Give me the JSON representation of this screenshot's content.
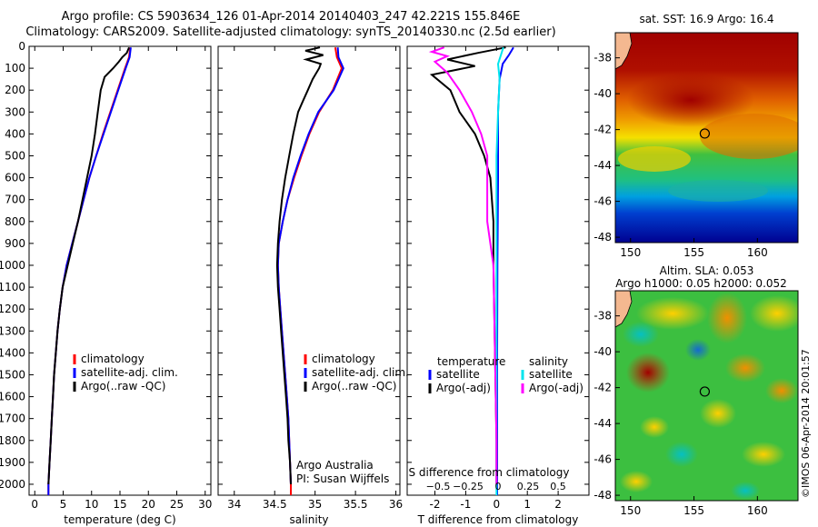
{
  "header": {
    "title_line1": "Argo profile: CS 5903634_126 01-Apr-2014 20140403_247 42.221S 155.846E",
    "title_line2": "Climatology: CARS2009. Satellite-adjusted climatology: synTS_20140330.nc (2.5d earlier)"
  },
  "credit": {
    "institution": "Argo Australia",
    "pi": "PI: Susan Wijffels",
    "watermark": "IMOS 06-Apr-2014 20:01:57"
  },
  "colors": {
    "climatology": "#ff0000",
    "satellite": "#0000ff",
    "argo": "#000000",
    "salinity_satellite": "#00e5ee",
    "salinity_argo": "#ff00ff"
  },
  "chart_data": [
    {
      "type": "line",
      "id": "temperature",
      "xlabel": "temperature (deg C)",
      "xlim": [
        -1,
        31
      ],
      "ylim": [
        2050,
        0
      ],
      "xticks": [
        0,
        5,
        10,
        15,
        20,
        25,
        30
      ],
      "yticks": [
        0,
        100,
        200,
        300,
        400,
        500,
        600,
        700,
        800,
        900,
        1000,
        1100,
        1200,
        1300,
        1400,
        1500,
        1600,
        1700,
        1800,
        1900,
        2000
      ],
      "legend": [
        "climatology",
        "satellite-adj. clim.",
        "Argo(..raw -QC)"
      ],
      "series": [
        {
          "name": "climatology",
          "color": "#ff0000",
          "points": [
            [
              16.8,
              5
            ],
            [
              16.6,
              50
            ],
            [
              15.9,
              100
            ],
            [
              14.6,
              200
            ],
            [
              13.3,
              300
            ],
            [
              12.0,
              400
            ],
            [
              10.8,
              500
            ],
            [
              9.6,
              600
            ],
            [
              8.6,
              700
            ],
            [
              7.6,
              800
            ],
            [
              6.6,
              900
            ],
            [
              5.6,
              1000
            ],
            [
              4.9,
              1100
            ],
            [
              4.4,
              1200
            ],
            [
              4.0,
              1300
            ],
            [
              3.7,
              1400
            ],
            [
              3.4,
              1500
            ],
            [
              3.2,
              1600
            ],
            [
              3.0,
              1700
            ],
            [
              2.8,
              1800
            ],
            [
              2.6,
              1900
            ],
            [
              2.4,
              2000
            ],
            [
              2.4,
              2050
            ]
          ]
        },
        {
          "name": "satellite-adj. clim.",
          "color": "#0000ff",
          "points": [
            [
              16.9,
              5
            ],
            [
              16.7,
              50
            ],
            [
              16.0,
              100
            ],
            [
              14.7,
              200
            ],
            [
              13.4,
              300
            ],
            [
              12.1,
              400
            ],
            [
              10.8,
              500
            ],
            [
              9.6,
              600
            ],
            [
              8.6,
              700
            ],
            [
              7.6,
              800
            ],
            [
              6.6,
              900
            ],
            [
              5.6,
              1000
            ],
            [
              4.9,
              1100
            ],
            [
              4.4,
              1200
            ],
            [
              4.0,
              1300
            ],
            [
              3.7,
              1400
            ],
            [
              3.4,
              1500
            ],
            [
              3.2,
              1600
            ],
            [
              3.0,
              1700
            ],
            [
              2.8,
              1800
            ],
            [
              2.6,
              1900
            ],
            [
              2.4,
              2000
            ],
            [
              2.4,
              2050
            ]
          ]
        },
        {
          "name": "Argo(..raw -QC)",
          "color": "#000000",
          "points": [
            [
              16.6,
              5
            ],
            [
              16.2,
              30
            ],
            [
              15.4,
              50
            ],
            [
              14.8,
              70
            ],
            [
              13.8,
              100
            ],
            [
              12.3,
              140
            ],
            [
              11.6,
              200
            ],
            [
              11.1,
              300
            ],
            [
              10.6,
              400
            ],
            [
              10.0,
              500
            ],
            [
              9.2,
              600
            ],
            [
              8.4,
              700
            ],
            [
              7.6,
              800
            ],
            [
              6.7,
              900
            ],
            [
              5.8,
              1000
            ],
            [
              4.9,
              1100
            ],
            [
              4.4,
              1200
            ],
            [
              4.0,
              1300
            ],
            [
              3.7,
              1400
            ],
            [
              3.4,
              1500
            ],
            [
              3.2,
              1600
            ],
            [
              3.0,
              1700
            ],
            [
              2.8,
              1800
            ],
            [
              2.6,
              1900
            ],
            [
              2.4,
              2000
            ]
          ]
        }
      ]
    },
    {
      "type": "line",
      "id": "salinity",
      "xlabel": "salinity",
      "xlim": [
        33.8,
        36.05
      ],
      "ylim": [
        2050,
        0
      ],
      "xticks": [
        34,
        34.5,
        35,
        35.5,
        36
      ],
      "legend": [
        "climatology",
        "satellite-adj. clim.",
        "Argo(..raw -QC)"
      ],
      "series": [
        {
          "name": "climatology",
          "color": "#ff0000",
          "points": [
            [
              35.25,
              5
            ],
            [
              35.27,
              50
            ],
            [
              35.33,
              100
            ],
            [
              35.22,
              200
            ],
            [
              35.05,
              300
            ],
            [
              34.93,
              400
            ],
            [
              34.83,
              500
            ],
            [
              34.74,
              600
            ],
            [
              34.66,
              700
            ],
            [
              34.6,
              800
            ],
            [
              34.55,
              900
            ],
            [
              34.54,
              1000
            ],
            [
              34.55,
              1100
            ],
            [
              34.57,
              1200
            ],
            [
              34.59,
              1300
            ],
            [
              34.61,
              1400
            ],
            [
              34.63,
              1500
            ],
            [
              34.65,
              1600
            ],
            [
              34.67,
              1700
            ],
            [
              34.68,
              1800
            ],
            [
              34.69,
              1900
            ],
            [
              34.7,
              2000
            ],
            [
              34.7,
              2050
            ]
          ]
        },
        {
          "name": "satellite-adj. clim.",
          "color": "#0000ff",
          "points": [
            [
              35.28,
              5
            ],
            [
              35.29,
              50
            ],
            [
              35.35,
              100
            ],
            [
              35.23,
              200
            ],
            [
              35.04,
              300
            ],
            [
              34.92,
              400
            ],
            [
              34.82,
              500
            ],
            [
              34.73,
              600
            ],
            [
              34.66,
              700
            ],
            [
              34.6,
              800
            ],
            [
              34.55,
              900
            ],
            [
              34.54,
              1000
            ],
            [
              34.55,
              1100
            ],
            [
              34.57,
              1200
            ],
            [
              34.59,
              1300
            ],
            [
              34.61,
              1400
            ],
            [
              34.63,
              1500
            ],
            [
              34.65,
              1600
            ],
            [
              34.67,
              1700
            ],
            [
              34.68,
              1800
            ],
            [
              34.69,
              1900
            ],
            [
              34.7,
              2000
            ]
          ]
        },
        {
          "name": "Argo(..raw -QC)",
          "color": "#000000",
          "points": [
            [
              35.06,
              5
            ],
            [
              34.88,
              20
            ],
            [
              35.1,
              40
            ],
            [
              34.89,
              60
            ],
            [
              35.07,
              80
            ],
            [
              35.05,
              100
            ],
            [
              34.97,
              150
            ],
            [
              34.91,
              200
            ],
            [
              34.85,
              250
            ],
            [
              34.79,
              300
            ],
            [
              34.73,
              400
            ],
            [
              34.68,
              500
            ],
            [
              34.63,
              600
            ],
            [
              34.59,
              700
            ],
            [
              34.56,
              800
            ],
            [
              34.54,
              900
            ],
            [
              34.53,
              1000
            ],
            [
              34.54,
              1100
            ],
            [
              34.56,
              1200
            ],
            [
              34.58,
              1300
            ],
            [
              34.6,
              1400
            ],
            [
              34.62,
              1500
            ],
            [
              34.64,
              1600
            ],
            [
              34.66,
              1700
            ],
            [
              34.67,
              1800
            ],
            [
              34.69,
              1900
            ],
            [
              34.7,
              2000
            ]
          ]
        }
      ]
    },
    {
      "type": "line",
      "id": "differences",
      "xlabel": "T difference from climatology",
      "top_label": "S difference from climatology",
      "xlim": [
        -2.9,
        3.0
      ],
      "ylim": [
        2050,
        0
      ],
      "xticks": [
        -2,
        -1,
        0,
        1,
        2
      ],
      "top_ticks": [
        -0.5,
        -0.25,
        0,
        0.25,
        0.5
      ],
      "legend_titles": [
        "temperature",
        "salinity"
      ],
      "legend": [
        "satellite",
        "Argo(-adj)",
        "satellite",
        "Argo(-adj)"
      ],
      "series": [
        {
          "name": "satellite",
          "color": "#0000ff",
          "points": [
            [
              0.55,
              5
            ],
            [
              0.4,
              40
            ],
            [
              0.2,
              80
            ],
            [
              0.1,
              150
            ],
            [
              0.05,
              300
            ],
            [
              0.05,
              600
            ],
            [
              0.03,
              1000
            ],
            [
              0.02,
              1400
            ],
            [
              0.02,
              2050
            ]
          ]
        },
        {
          "name": "Argo(-adj)",
          "color": "#000000",
          "points": [
            [
              0.3,
              5
            ],
            [
              -0.6,
              30
            ],
            [
              -1.6,
              60
            ],
            [
              -0.7,
              90
            ],
            [
              -2.1,
              130
            ],
            [
              -1.5,
              200
            ],
            [
              -1.2,
              300
            ],
            [
              -0.7,
              400
            ],
            [
              -0.4,
              500
            ],
            [
              -0.2,
              600
            ],
            [
              -0.1,
              800
            ],
            [
              -0.1,
              1000
            ],
            [
              -0.05,
              1400
            ],
            [
              0.0,
              1800
            ],
            [
              0.0,
              2000
            ]
          ]
        },
        {
          "name": "satellite",
          "color": "#00e5ee",
          "points": [
            [
              0.22,
              5
            ],
            [
              0.05,
              80
            ],
            [
              0.1,
              150
            ],
            [
              0.05,
              300
            ],
            [
              0.0,
              500
            ],
            [
              0.0,
              1000
            ],
            [
              0.0,
              2050
            ]
          ]
        },
        {
          "name": "Argo(-adj)",
          "color": "#ff00ff",
          "points": [
            [
              -1.7,
              5
            ],
            [
              -2.1,
              25
            ],
            [
              -1.6,
              45
            ],
            [
              -2.0,
              70
            ],
            [
              -1.6,
              120
            ],
            [
              -1.2,
              200
            ],
            [
              -0.8,
              300
            ],
            [
              -0.5,
              400
            ],
            [
              -0.3,
              500
            ],
            [
              -0.3,
              800
            ],
            [
              -0.1,
              1000
            ],
            [
              -0.05,
              1400
            ],
            [
              0.0,
              1800
            ],
            [
              0.0,
              2000
            ]
          ]
        }
      ]
    },
    {
      "type": "heatmap",
      "id": "sst-map",
      "title": "sat. SST: 16.9  Argo: 16.4",
      "xlim": [
        148.8,
        163.2
      ],
      "ylim": [
        -48.3,
        -36.6
      ],
      "xticks": [
        150,
        155,
        160
      ],
      "yticks": [
        -38,
        -40,
        -42,
        -44,
        -46,
        -48
      ],
      "marker": [
        155.85,
        -42.22
      ]
    },
    {
      "type": "heatmap",
      "id": "sla-map",
      "title_line1": "Altim. SLA: 0.053",
      "title_line2": "Argo h1000: 0.05 h2000: 0.052",
      "xlim": [
        148.8,
        163.2
      ],
      "ylim": [
        -48.3,
        -36.6
      ],
      "xticks": [
        150,
        155,
        160
      ],
      "yticks": [
        -38,
        -40,
        -42,
        -44,
        -46,
        -48
      ],
      "marker": [
        155.85,
        -42.22
      ]
    }
  ]
}
